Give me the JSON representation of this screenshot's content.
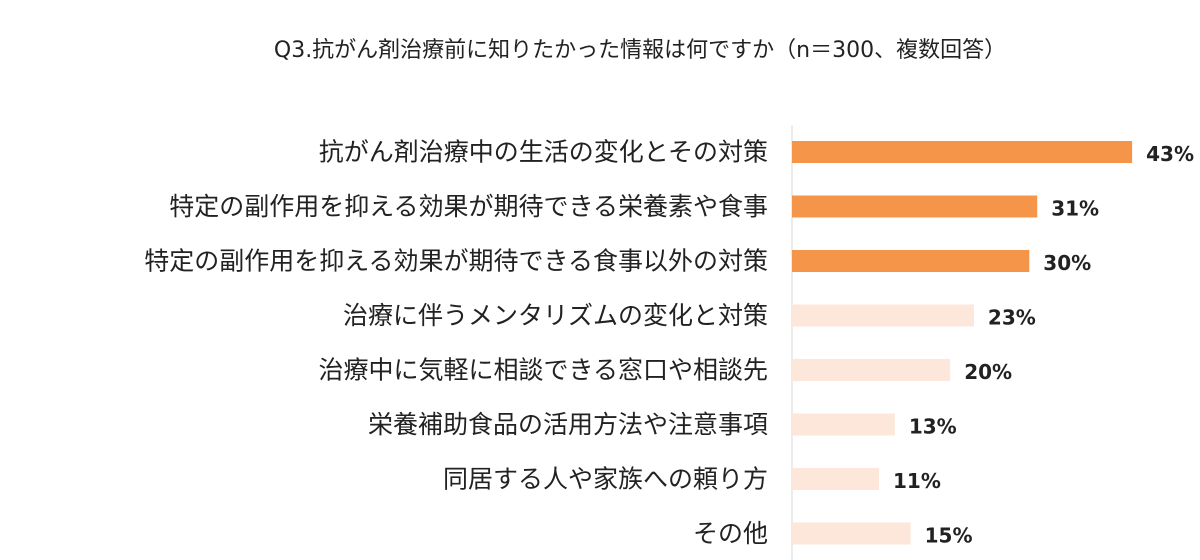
{
  "chart_data": {
    "type": "bar",
    "orientation": "horizontal",
    "title": "Q3.抗がん剤治療前に知りたかった情報は何ですか（n＝300、複数回答）",
    "categories": [
      "抗がん剤治療中の生活の変化とその対策",
      "特定の副作用を抑える効果が期待できる栄養素や食事",
      "特定の副作用を抑える効果が期待できる食事以外の対策",
      "治療に伴うメンタリズムの変化と対策",
      "治療中に気軽に相談できる窓口や相談先",
      "栄養補助食品の活用方法や注意事項",
      "同居する人や家族への頼り方",
      "その他"
    ],
    "values": [
      43,
      31,
      30,
      23,
      20,
      13,
      11,
      15
    ],
    "value_labels": [
      "43%",
      "31%",
      "30%",
      "23%",
      "20%",
      "13%",
      "11%",
      "15%"
    ],
    "unit": "%",
    "highlight_count": 3,
    "colors": {
      "highlight": "#F4954A",
      "muted": "#FCE7DA",
      "axis": "#D9D9D9",
      "text": "#222222"
    },
    "grid": false,
    "legend": "none"
  }
}
